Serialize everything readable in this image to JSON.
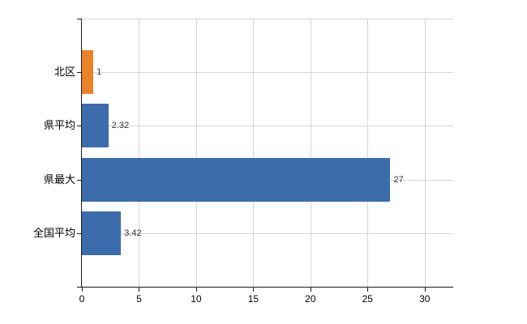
{
  "chart_data": {
    "type": "bar",
    "orientation": "horizontal",
    "title": "",
    "xlabel": "",
    "ylabel": "",
    "categories": [
      "北区",
      "県平均",
      "県最大",
      "全国平均"
    ],
    "values": [
      1,
      2.32,
      27,
      3.42
    ],
    "value_labels": [
      "1",
      "2.32",
      "27",
      "3.42"
    ],
    "bar_colors": [
      "#E8832C",
      "#3C6CAC",
      "#3C6CAC",
      "#3C6CAC"
    ],
    "xticks": [
      0,
      5,
      10,
      15,
      20,
      25,
      30
    ],
    "xtick_labels": [
      "0",
      "5",
      "10",
      "15",
      "20",
      "25",
      "30"
    ],
    "xlim": [
      0,
      32.5
    ],
    "grid": true,
    "legend": false,
    "colors": {
      "grid": "#D6D6D6",
      "axis": "#1A1A1A",
      "label_text": "#000000",
      "value_text": "#333333",
      "background": "#FFFFFF"
    }
  }
}
